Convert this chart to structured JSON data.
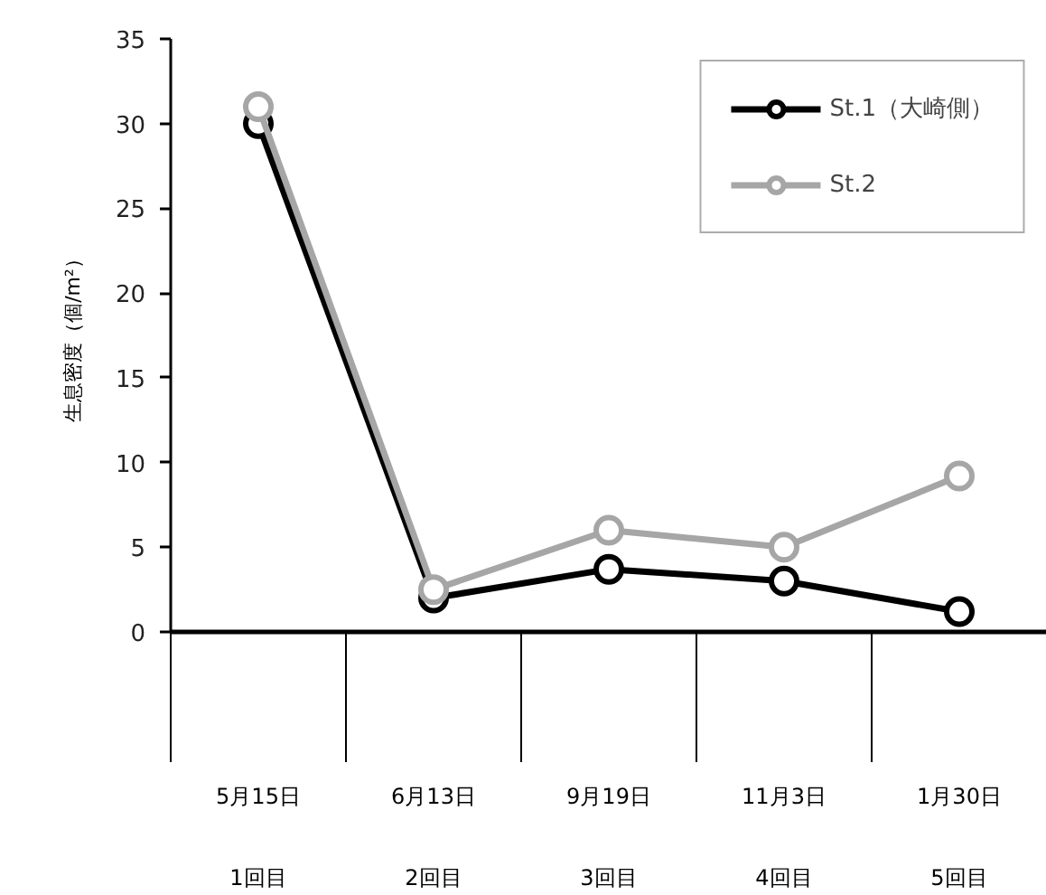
{
  "chart_data": {
    "type": "line",
    "ylabel": "生息密度（個/m²）",
    "categories": [
      "5月15日\n1回目",
      "6月13日\n2回目",
      "9月19日\n3回目",
      "11月3日\n4回目",
      "1月30日\n5回目"
    ],
    "series": [
      {
        "name": "St.1（大崎側）",
        "color": "#000000",
        "values": [
          30,
          2,
          3.7,
          3,
          1.2
        ]
      },
      {
        "name": "St.2",
        "color": "#a6a6a6",
        "values": [
          31,
          2.5,
          6,
          5,
          9.2
        ]
      }
    ],
    "ylim": [
      0,
      35
    ],
    "yticks": [
      0,
      5,
      10,
      15,
      20,
      25,
      30,
      35
    ],
    "grid": false,
    "legend": "top right",
    "marker": "circle",
    "line_style": "solid"
  }
}
